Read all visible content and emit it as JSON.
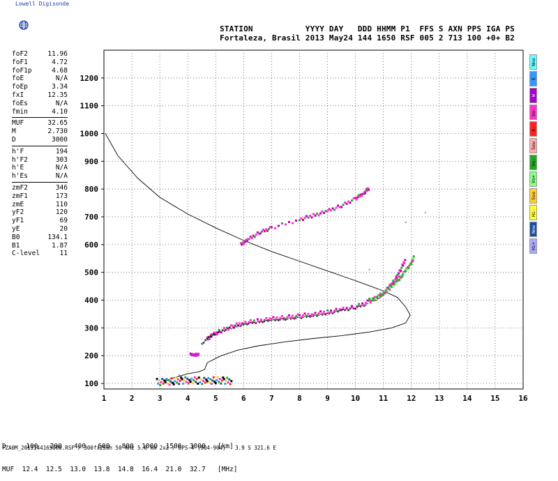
{
  "brand": {
    "name": "Lowell Digisonde"
  },
  "header": {
    "line1": "STATION           YYYY DAY   DDD HHMM P1  FFS S AXN PPS IGA PS",
    "line2": "Fortaleza, Brasil 2013 May24 144 1650 RSF 005 2 713 100 +0+ B2"
  },
  "params": {
    "group1": [
      {
        "k": "foF2",
        "v": "11.96"
      },
      {
        "k": "foF1",
        "v": "4.72"
      },
      {
        "k": "foF1p",
        "v": "4.68"
      },
      {
        "k": "foE",
        "v": "N/A"
      },
      {
        "k": "foEp",
        "v": "3.34"
      },
      {
        "k": "fxI",
        "v": "12.35"
      },
      {
        "k": "foEs",
        "v": "N/A"
      },
      {
        "k": "fmin",
        "v": "4.10"
      }
    ],
    "group2": [
      {
        "k": "MUF",
        "v": "32.65"
      },
      {
        "k": "M",
        "v": "2.730"
      },
      {
        "k": "D",
        "v": "3000"
      }
    ],
    "group3": [
      {
        "k": "h'F",
        "v": "194"
      },
      {
        "k": "h'F2",
        "v": "303"
      },
      {
        "k": "h'E",
        "v": "N/A"
      },
      {
        "k": "h'Es",
        "v": "N/A"
      }
    ],
    "group4": [
      {
        "k": "zmF2",
        "v": "346"
      },
      {
        "k": "zmF1",
        "v": "173"
      },
      {
        "k": "zmE",
        "v": "110"
      },
      {
        "k": "yF2",
        "v": "120"
      },
      {
        "k": "yF1",
        "v": "69"
      },
      {
        "k": "yE",
        "v": "20"
      },
      {
        "k": "B0",
        "v": "134.1"
      },
      {
        "k": "B1",
        "v": "1.87"
      },
      {
        "k": "C-level",
        "v": "11"
      }
    ]
  },
  "legend": [
    {
      "label": "Nne",
      "color": "#66ffff"
    },
    {
      "label": "E",
      "color": "#3399ff"
    },
    {
      "label": "W",
      "color": "#aa00cc"
    },
    {
      "label": "Vo-",
      "color": "#ff33cc"
    },
    {
      "label": "X-",
      "color": "#ff2222"
    },
    {
      "label": "Sew",
      "color": "#ffaaaa"
    },
    {
      "label": "Vo-",
      "color": "#22aa22"
    },
    {
      "label": "Vo+",
      "color": "#88ff88"
    },
    {
      "label": "Sse",
      "color": "#ffcc33"
    },
    {
      "label": "Hi-",
      "color": "#ffff33"
    },
    {
      "label": "Nnw",
      "color": "#1a4fa0"
    },
    {
      "label": "Hi+",
      "color": "#aaaaff"
    }
  ],
  "muf_table": {
    "row_d": "D     100   200   400   600   800  1000  1500  3000   [km]",
    "row_muf": "MUF  12.4  12.5  13.0  13.8  14.8  16.4  21.0  32.7   [MHz]"
  },
  "footer": "FZA0M_2013144165000.RSF / 300fx256h 50 kHz 5.0 km 2x2 / DPS-4 (904-904)   3.9 S 321.6 E",
  "chart_data": {
    "type": "scatter",
    "xlim": [
      1,
      16
    ],
    "ylim": [
      80,
      1300
    ],
    "xticks": [
      1,
      2,
      3,
      4,
      5,
      6,
      7,
      8,
      9,
      10,
      11,
      12,
      13,
      14,
      15,
      16
    ],
    "yticks": [
      100,
      200,
      300,
      400,
      500,
      600,
      700,
      800,
      900,
      1000,
      1100,
      1200
    ],
    "grid": true,
    "profile": {
      "x": [
        1.05,
        1.5,
        2.2,
        3.0,
        4.0,
        5.0,
        6.0,
        7.0,
        8.0,
        9.0,
        10.0,
        10.6,
        11.0,
        11.5,
        11.8,
        11.96,
        11.8,
        11.3,
        10.5,
        9.5,
        8.5,
        7.5,
        6.5,
        5.8,
        5.2,
        4.9,
        4.7,
        4.6,
        4.4,
        4.0,
        3.5,
        3.2
      ],
      "y": [
        1000,
        920,
        840,
        770,
        710,
        660,
        615,
        575,
        540,
        505,
        470,
        448,
        433,
        410,
        375,
        346,
        318,
        300,
        285,
        272,
        262,
        250,
        235,
        220,
        200,
        185,
        175,
        150,
        142,
        135,
        120,
        110
      ]
    },
    "trace_f2_ordinary": {
      "x": [
        4.7,
        4.9,
        5.2,
        5.6,
        6.0,
        6.5,
        7.0,
        7.5,
        8.0,
        8.5,
        9.0,
        9.5,
        10.0,
        10.5,
        10.8,
        11.0,
        11.2,
        11.4,
        11.6,
        11.8
      ],
      "y": [
        260,
        275,
        290,
        305,
        318,
        325,
        332,
        338,
        343,
        350,
        357,
        365,
        375,
        395,
        410,
        425,
        445,
        470,
        505,
        550
      ]
    },
    "trace_f2_upper": {
      "x": [
        10.5,
        10.8,
        11.0,
        11.2,
        11.4,
        11.6,
        11.8,
        12.0,
        12.1
      ],
      "y": [
        400,
        410,
        425,
        440,
        460,
        480,
        505,
        535,
        555
      ]
    },
    "trace_f2_mid": {
      "x": [
        4.5,
        4.7,
        5.0,
        5.5,
        6.0,
        6.5,
        7.0,
        7.5,
        8.0,
        8.5,
        9.0,
        9.5,
        10.0,
        10.5
      ],
      "y": [
        240,
        262,
        280,
        298,
        312,
        320,
        326,
        331,
        336,
        343,
        350,
        362,
        372,
        386
      ]
    },
    "trace_echo": {
      "x": [
        5.9,
        6.2,
        6.6,
        7.0,
        8.0,
        8.5,
        9.0,
        9.5,
        10.0,
        10.3,
        10.5
      ],
      "y": [
        600,
        620,
        645,
        660,
        690,
        705,
        720,
        740,
        765,
        785,
        805
      ]
    },
    "trace_e": {
      "x": [
        2.9,
        3.2,
        3.5,
        3.8,
        4.1,
        4.4,
        4.7,
        5.0,
        5.3,
        5.6
      ],
      "y": [
        105,
        105,
        108,
        110,
        112,
        110,
        108,
        112,
        110,
        108
      ]
    },
    "trace_f1": {
      "x": [
        4.1,
        4.2,
        4.3,
        4.4
      ],
      "y": [
        205,
        203,
        202,
        205
      ]
    },
    "spurs": {
      "x": [
        10.5,
        12.5,
        11.8,
        4.3,
        3.7,
        2.9
      ],
      "y": [
        510,
        715,
        680,
        210,
        130,
        112
      ]
    }
  }
}
